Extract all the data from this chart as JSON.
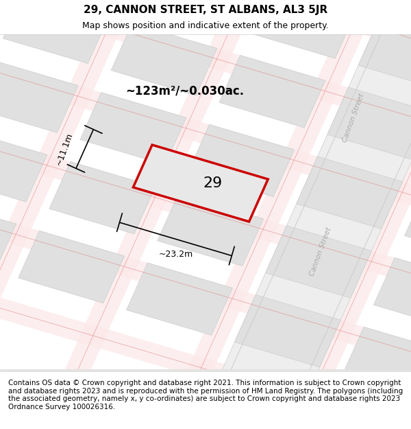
{
  "title": "29, CANNON STREET, ST ALBANS, AL3 5JR",
  "subtitle": "Map shows position and indicative extent of the property.",
  "footer": "Contains OS data © Crown copyright and database right 2021. This information is subject to Crown copyright and database rights 2023 and is reproduced with the permission of HM Land Registry. The polygons (including the associated geometry, namely x, y co-ordinates) are subject to Crown copyright and database rights 2023 Ordnance Survey 100026316.",
  "area_label": "~123m²/~0.030ac.",
  "width_label": "~23.2m",
  "height_label": "~11.1m",
  "number_label": "29",
  "map_bg": "#f0f0f0",
  "block_color": "#e0e0e0",
  "block_stroke": "#cccccc",
  "road_stripe_color": "#f5b8b8",
  "road_line_color": "#e08080",
  "property_color": "#e8e8e8",
  "property_outline": "#cc0000",
  "cannon_street_label": "Cannon Street",
  "title_fontsize": 11,
  "subtitle_fontsize": 9,
  "footer_fontsize": 7.5
}
